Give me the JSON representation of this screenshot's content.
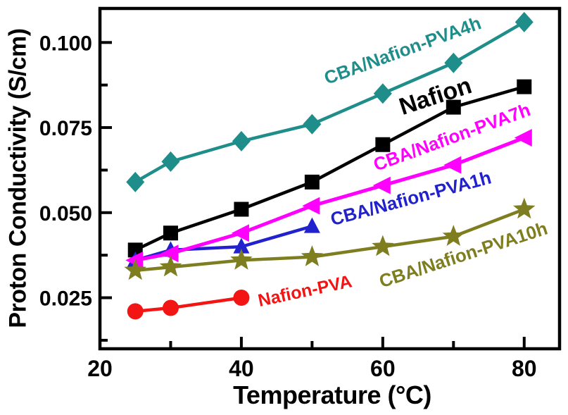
{
  "chart_data": {
    "type": "line",
    "title": "",
    "xlabel": "Temperature (°C)",
    "ylabel": "Proton Conductivity (S/cm)",
    "xlim": [
      20,
      85
    ],
    "ylim": [
      0.01,
      0.11
    ],
    "x_ticks_major": [
      20,
      40,
      60,
      80
    ],
    "x_ticks_minor": [
      30,
      50,
      70
    ],
    "y_ticks_major": [
      0.1,
      0.075,
      0.05,
      0.025
    ],
    "y_tick_labels": [
      "0.100",
      "0.075",
      "0.050",
      "0.025"
    ],
    "y_ticks_minor": [
      0.0875,
      0.0625,
      0.0375,
      0.0125
    ],
    "grid": false,
    "legend": "inline-rotated-labels",
    "axis_color": "#000000",
    "series": [
      {
        "name": "CBA/Nafion-PVA4h",
        "marker": "diamond",
        "color": "#1f8e8a",
        "zorder": 1,
        "x": [
          25,
          30,
          40,
          50,
          60,
          70,
          80
        ],
        "y": [
          0.059,
          0.065,
          0.071,
          0.076,
          0.085,
          0.094,
          0.106
        ],
        "label": {
          "x": 575,
          "y": 80,
          "angle": -20,
          "size": 26
        }
      },
      {
        "name": "Nafion",
        "marker": "square",
        "color": "#000000",
        "zorder": 2,
        "x": [
          25,
          30,
          40,
          50,
          60,
          70,
          80
        ],
        "y": [
          0.039,
          0.044,
          0.051,
          0.059,
          0.07,
          0.081,
          0.087
        ],
        "label": {
          "x": 622,
          "y": 147,
          "angle": -18,
          "size": 34
        }
      },
      {
        "name": "CBA/Nafion-PVA7h",
        "marker": "triangle-left",
        "color": "#ff00ff",
        "zorder": 4,
        "x": [
          25,
          30,
          40,
          50,
          60,
          70,
          80
        ],
        "y": [
          0.036,
          0.038,
          0.044,
          0.052,
          0.058,
          0.064,
          0.072
        ],
        "label": {
          "x": 645,
          "y": 203,
          "angle": -20,
          "size": 26
        }
      },
      {
        "name": "CBA/Nafion-PVA1h",
        "marker": "triangle-up",
        "color": "#2121cd",
        "zorder": 3,
        "x": [
          25,
          30,
          40,
          50
        ],
        "y": [
          0.036,
          0.039,
          0.04,
          0.046
        ],
        "label": {
          "x": 586,
          "y": 290,
          "angle": -15,
          "size": 26
        }
      },
      {
        "name": "CBA/Nafion-PVA10h",
        "marker": "star",
        "color": "#7e7e20",
        "zorder": 5,
        "x": [
          25,
          30,
          40,
          50,
          60,
          70,
          80
        ],
        "y": [
          0.033,
          0.034,
          0.036,
          0.037,
          0.04,
          0.043,
          0.051
        ],
        "label": {
          "x": 661,
          "y": 370,
          "angle": -18,
          "size": 26
        }
      },
      {
        "name": "Nafion-PVA",
        "marker": "circle",
        "color": "#f31414",
        "zorder": 6,
        "x": [
          25,
          30,
          40
        ],
        "y": [
          0.021,
          0.022,
          0.025
        ],
        "label": {
          "x": 435,
          "y": 421,
          "angle": -12,
          "size": 25
        }
      }
    ]
  }
}
